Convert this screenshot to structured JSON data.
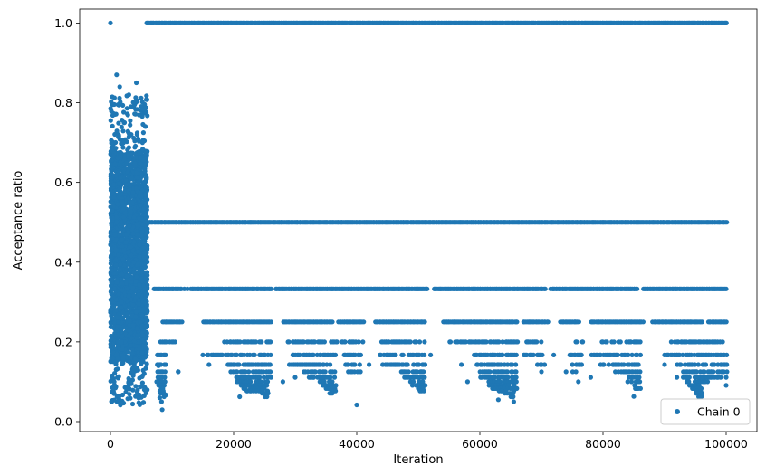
{
  "chart_data": {
    "type": "scatter",
    "title": "",
    "xlabel": "Iteration",
    "ylabel": "Acceptance ratio",
    "xlim": [
      -5000,
      105000
    ],
    "ylim": [
      -0.025,
      1.035
    ],
    "x_ticks": [
      0,
      20000,
      40000,
      60000,
      80000,
      100000
    ],
    "x_tick_labels": [
      "0",
      "20000",
      "40000",
      "60000",
      "80000",
      "100000"
    ],
    "y_ticks": [
      0.0,
      0.2,
      0.4,
      0.6,
      0.8,
      1.0
    ],
    "y_tick_labels": [
      "0.0",
      "0.2",
      "0.4",
      "0.6",
      "0.8",
      "1.0"
    ],
    "grid": false,
    "legend_position": "bottom-right",
    "series": [
      {
        "name": "Chain 0",
        "color": "#1f77b4",
        "marker": "circle",
        "points_note_free": true,
        "points": [
          [
            0,
            1.0
          ],
          [
            1000,
            0.87
          ],
          [
            1500,
            0.84
          ],
          [
            4200,
            0.85
          ],
          [
            3000,
            0.82
          ],
          [
            200,
            0.05
          ],
          [
            600,
            0.1
          ],
          [
            800,
            0.15
          ],
          [
            1200,
            0.2
          ],
          [
            1800,
            0.3
          ],
          [
            2500,
            0.45
          ],
          [
            3500,
            0.55
          ],
          [
            4500,
            0.6
          ],
          [
            5200,
            0.7
          ],
          [
            2200,
            0.75
          ],
          [
            3800,
            0.4
          ],
          [
            1000,
            0.5
          ],
          [
            2800,
            0.333
          ],
          [
            4800,
            0.25
          ],
          [
            5500,
            0.08
          ],
          [
            7500,
            0.1
          ],
          [
            8000,
            0.06
          ],
          [
            8400,
            0.03
          ],
          [
            7800,
            0.14
          ],
          [
            9000,
            0.25
          ],
          [
            10000,
            0.2
          ],
          [
            11000,
            0.125
          ],
          [
            12000,
            0.333
          ]
        ],
        "bands": [
          {
            "y": 1.0,
            "x_ranges": [
              [
                5800,
                100000
              ]
            ]
          },
          {
            "y": 0.5,
            "x_ranges": [
              [
                5800,
                100000
              ]
            ]
          },
          {
            "y": 0.333,
            "x_ranges": [
              [
                7000,
                11500
              ],
              [
                13000,
                26000
              ],
              [
                26800,
                51500
              ],
              [
                52500,
                70500
              ],
              [
                71500,
                85500
              ],
              [
                86500,
                100000
              ]
            ]
          },
          {
            "y": 0.25,
            "x_ranges": [
              [
                8500,
                11500
              ],
              [
                15000,
                26000
              ],
              [
                28000,
                36000
              ],
              [
                37000,
                41000
              ],
              [
                43000,
                51000
              ],
              [
                54000,
                66000
              ],
              [
                67000,
                71000
              ],
              [
                73000,
                76000
              ],
              [
                78000,
                86500
              ],
              [
                88000,
                96000
              ],
              [
                97000,
                100000
              ]
            ]
          },
          {
            "y": 0.2,
            "x_ranges": [
              [
                8000,
                10500
              ],
              [
                18500,
                26000
              ],
              [
                28500,
                41000
              ],
              [
                44000,
                51000
              ],
              [
                55000,
                66000
              ],
              [
                67500,
                70000
              ],
              [
                75500,
                77000
              ],
              [
                79500,
                86000
              ],
              [
                91000,
                100000
              ]
            ]
          },
          {
            "y": 0.167,
            "x_ranges": [
              [
                7500,
                9000
              ],
              [
                15500,
                26000
              ],
              [
                29500,
                36500
              ],
              [
                37500,
                40500
              ],
              [
                43500,
                51000
              ],
              [
                59000,
                66000
              ],
              [
                67000,
                70000
              ],
              [
                74500,
                76500
              ],
              [
                78000,
                86000
              ],
              [
                90000,
                100000
              ]
            ]
          },
          {
            "y": 0.143,
            "x_ranges": [
              [
                7500,
                9000
              ],
              [
                19000,
                26000
              ],
              [
                29000,
                36000
              ],
              [
                38000,
                40500
              ],
              [
                44000,
                51000
              ],
              [
                59000,
                66000
              ],
              [
                69000,
                70500
              ],
              [
                75000,
                76500
              ],
              [
                79500,
                86000
              ],
              [
                92000,
                100000
              ]
            ]
          },
          {
            "y": 0.125,
            "x_ranges": [
              [
                7600,
                8800
              ],
              [
                19500,
                26000
              ],
              [
                31000,
                36500
              ],
              [
                38500,
                40500
              ],
              [
                47000,
                51000
              ],
              [
                60000,
                66000
              ],
              [
                75000,
                76500
              ],
              [
                82000,
                86000
              ],
              [
                93000,
                100000
              ]
            ]
          },
          {
            "y": 0.111,
            "x_ranges": [
              [
                7600,
                8800
              ],
              [
                20000,
                26000
              ],
              [
                32000,
                36500
              ],
              [
                47500,
                51000
              ],
              [
                60000,
                66000
              ],
              [
                84000,
                86000
              ],
              [
                93000,
                99000
              ]
            ]
          },
          {
            "y": 0.1,
            "x_ranges": [
              [
                7600,
                8800
              ],
              [
                20500,
                25500
              ],
              [
                34000,
                36500
              ],
              [
                48500,
                51000
              ],
              [
                61000,
                66000
              ],
              [
                84500,
                86000
              ],
              [
                93500,
                97000
              ]
            ]
          },
          {
            "y": 0.091,
            "x_ranges": [
              [
                7700,
                8800
              ],
              [
                21000,
                25500
              ],
              [
                34500,
                36500
              ],
              [
                49000,
                51000
              ],
              [
                61500,
                65500
              ],
              [
                85000,
                86000
              ],
              [
                94000,
                96000
              ]
            ]
          },
          {
            "y": 0.083,
            "x_ranges": [
              [
                7800,
                8800
              ],
              [
                21500,
                25500
              ],
              [
                35000,
                36500
              ],
              [
                49500,
                51000
              ],
              [
                62000,
                65500
              ],
              [
                85000,
                86000
              ],
              [
                94500,
                96000
              ]
            ]
          },
          {
            "y": 0.077,
            "x_ranges": [
              [
                7900,
                8700
              ],
              [
                22000,
                25500
              ],
              [
                35500,
                36500
              ],
              [
                50000,
                51000
              ],
              [
                63000,
                65500
              ],
              [
                95000,
                96000
              ]
            ]
          },
          {
            "y": 0.071,
            "x_ranges": [
              [
                8000,
                8700
              ],
              [
                24500,
                25500
              ],
              [
                35500,
                36500
              ],
              [
                64000,
                65500
              ],
              [
                95000,
                96000
              ]
            ]
          },
          {
            "y": 0.0625,
            "x_ranges": [
              [
                8000,
                8700
              ],
              [
                20500,
                21000
              ],
              [
                25000,
                25500
              ],
              [
                65000,
                65500
              ],
              [
                95500,
                96000
              ]
            ]
          }
        ],
        "early_cluster": {
          "x_range": [
            0,
            6000
          ],
          "y_range": [
            0.04,
            0.82
          ],
          "dense_y_range": [
            0.15,
            0.68
          ]
        },
        "sparse_points": [
          [
            15000,
            0.167
          ],
          [
            16000,
            0.143
          ],
          [
            17000,
            0.167
          ],
          [
            28000,
            0.1
          ],
          [
            30000,
            0.111
          ],
          [
            40000,
            0.042
          ],
          [
            42000,
            0.143
          ],
          [
            45000,
            0.167
          ],
          [
            52000,
            0.167
          ],
          [
            57000,
            0.143
          ],
          [
            58000,
            0.1
          ],
          [
            63000,
            0.055
          ],
          [
            65500,
            0.05
          ],
          [
            66000,
            0.083
          ],
          [
            70000,
            0.125
          ],
          [
            72000,
            0.167
          ],
          [
            74000,
            0.125
          ],
          [
            76000,
            0.1
          ],
          [
            78000,
            0.111
          ],
          [
            84000,
            0.1
          ],
          [
            85000,
            0.063
          ],
          [
            90000,
            0.143
          ],
          [
            92000,
            0.111
          ],
          [
            96000,
            0.063
          ],
          [
            100000,
            0.111
          ],
          [
            100000,
            0.091
          ],
          [
            11000,
            0.125
          ],
          [
            12500,
            0.333
          ],
          [
            9000,
            0.067
          ],
          [
            8300,
            0.05
          ]
        ]
      }
    ]
  }
}
